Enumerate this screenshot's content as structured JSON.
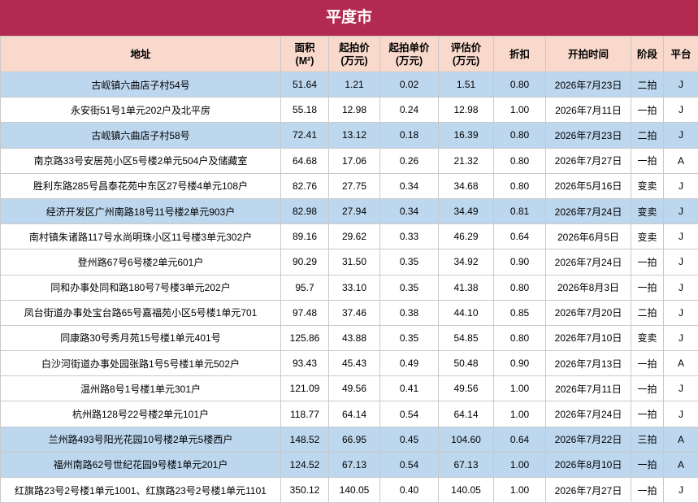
{
  "title": "平度市",
  "table": {
    "header": [
      [
        "地址"
      ],
      [
        "面积",
        "(M²)"
      ],
      [
        "起拍价",
        "(万元)"
      ],
      [
        "起拍单价",
        "(万元)"
      ],
      [
        "评估价",
        "(万元)"
      ],
      [
        "折扣"
      ],
      [
        "开拍时间"
      ],
      [
        "阶段"
      ],
      [
        "平台"
      ]
    ],
    "rows": [
      [
        "古岘镇六曲店子村54号",
        "51.64",
        "1.21",
        "0.02",
        "1.51",
        "0.80",
        "2026年7月23日",
        "二拍",
        "J"
      ],
      [
        "永安街51号1单元202户及北平房",
        "55.18",
        "12.98",
        "0.24",
        "12.98",
        "1.00",
        "2026年7月11日",
        "一拍",
        "J"
      ],
      [
        "古岘镇六曲店子村58号",
        "72.41",
        "13.12",
        "0.18",
        "16.39",
        "0.80",
        "2026年7月23日",
        "二拍",
        "J"
      ],
      [
        "南京路33号安居苑小区5号楼2单元504户及储藏室",
        "64.68",
        "17.06",
        "0.26",
        "21.32",
        "0.80",
        "2026年7月27日",
        "一拍",
        "A"
      ],
      [
        "胜利东路285号昌泰花苑中东区27号楼4单元108户",
        "82.76",
        "27.75",
        "0.34",
        "34.68",
        "0.80",
        "2026年5月16日",
        "变卖",
        "J"
      ],
      [
        "经济开发区广州南路18号11号楼2单元903户",
        "82.98",
        "27.94",
        "0.34",
        "34.49",
        "0.81",
        "2026年7月24日",
        "变卖",
        "J"
      ],
      [
        "南村镇朱诸路117号水尚明珠小区11号楼3单元302户",
        "89.16",
        "29.62",
        "0.33",
        "46.29",
        "0.64",
        "2026年6月5日",
        "变卖",
        "J"
      ],
      [
        "登州路67号6号楼2单元601户",
        "90.29",
        "31.50",
        "0.35",
        "34.92",
        "0.90",
        "2026年7月24日",
        "一拍",
        "J"
      ],
      [
        "同和办事处同和路180号7号楼3单元202户",
        "95.7",
        "33.10",
        "0.35",
        "41.38",
        "0.80",
        "2026年8月3日",
        "一拍",
        "J"
      ],
      [
        "凤台街道办事处宝台路65号嘉福苑小区5号楼1单元701",
        "97.48",
        "37.46",
        "0.38",
        "44.10",
        "0.85",
        "2026年7月20日",
        "二拍",
        "J"
      ],
      [
        "同康路30号秀月苑15号楼1单元401号",
        "125.86",
        "43.88",
        "0.35",
        "54.85",
        "0.80",
        "2026年7月10日",
        "变卖",
        "J"
      ],
      [
        "白沙河街道办事处园张路1号5号楼1单元502户",
        "93.43",
        "45.43",
        "0.49",
        "50.48",
        "0.90",
        "2026年7月13日",
        "一拍",
        "A"
      ],
      [
        "温州路8号1号楼1单元301户",
        "121.09",
        "49.56",
        "0.41",
        "49.56",
        "1.00",
        "2026年7月11日",
        "一拍",
        "J"
      ],
      [
        "杭州路128号22号楼2单元101户",
        "118.77",
        "64.14",
        "0.54",
        "64.14",
        "1.00",
        "2026年7月24日",
        "一拍",
        "J"
      ],
      [
        "兰州路493号阳光花园10号楼2单元5楼西户",
        "148.52",
        "66.95",
        "0.45",
        "104.60",
        "0.64",
        "2026年7月22日",
        "三拍",
        "A"
      ],
      [
        "福州南路62号世纪花园9号楼1单元201户",
        "124.52",
        "67.13",
        "0.54",
        "67.13",
        "1.00",
        "2026年8月10日",
        "一拍",
        "A"
      ],
      [
        "红旗路23号2号楼1单元1001、红旗路23号2号楼1单元1101",
        "350.12",
        "140.05",
        "0.40",
        "140.05",
        "1.00",
        "2026年7月27日",
        "一拍",
        "J"
      ]
    ],
    "highlight_rows": [
      0,
      2,
      5,
      14,
      15
    ],
    "highlight_color": "#bdd7ee"
  }
}
